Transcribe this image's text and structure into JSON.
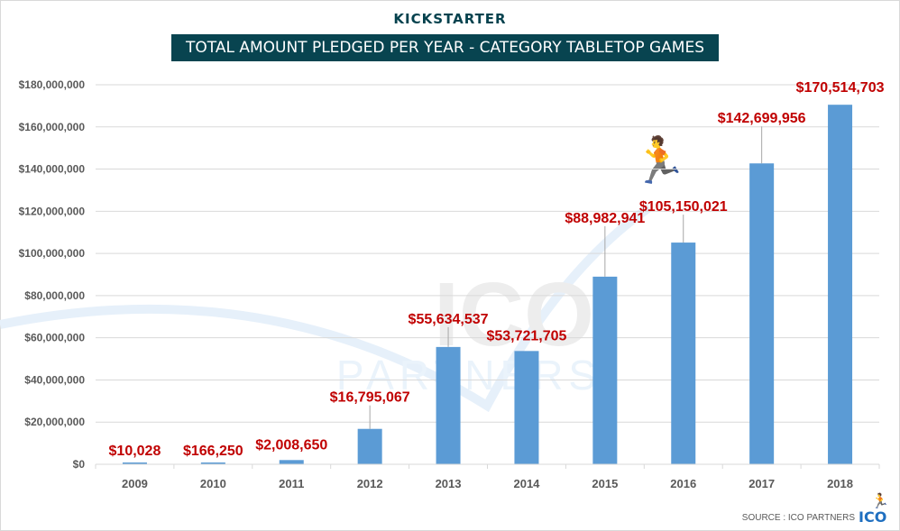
{
  "header": {
    "brand": "KICKSTARTER",
    "title": "TOTAL AMOUNT PLEDGED PER YEAR - CATEGORY TABLETOP GAMES"
  },
  "footer": {
    "source": "SOURCE : ICO PARTNERS",
    "logo": "ICO",
    "logo_icon": "runner-icon"
  },
  "watermark": {
    "top": "ICO",
    "bottom": "PARTNERS"
  },
  "colors": {
    "bar": "#5b9bd5",
    "label": "#c00000",
    "title_bg": "#084450",
    "brand": "#05424e"
  },
  "chart_data": {
    "type": "bar",
    "title": "TOTAL AMOUNT PLEDGED PER YEAR - CATEGORY TABLETOP GAMES",
    "xlabel": "",
    "ylabel": "",
    "categories": [
      "2009",
      "2010",
      "2011",
      "2012",
      "2013",
      "2014",
      "2015",
      "2016",
      "2017",
      "2018"
    ],
    "values": [
      10028,
      166250,
      2008650,
      16795067,
      55634537,
      53721705,
      88982941,
      105150021,
      142699956,
      170514703
    ],
    "data_labels": [
      "$10,028",
      "$166,250",
      "$2,008,650",
      "$16,795,067",
      "$55,634,537",
      "$53,721,705",
      "$88,982,941",
      "$105,150,021",
      "$142,699,956",
      "$170,514,703"
    ],
    "ylim": [
      0,
      180000000
    ],
    "yticks": [
      0,
      20000000,
      40000000,
      60000000,
      80000000,
      100000000,
      120000000,
      140000000,
      160000000,
      180000000
    ],
    "ytick_labels": [
      "$0",
      "$20,000,000",
      "$40,000,000",
      "$60,000,000",
      "$80,000,000",
      "$100,000,000",
      "$120,000,000",
      "$140,000,000",
      "$160,000,000",
      "$180,000,000"
    ],
    "grid": true,
    "legend": "none"
  }
}
